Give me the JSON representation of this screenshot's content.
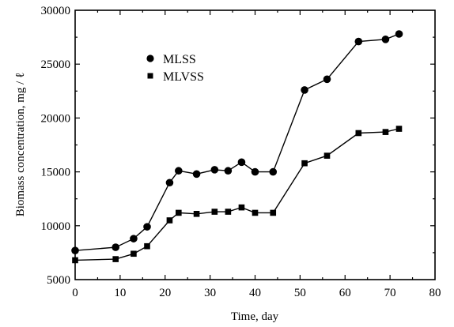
{
  "chart_data": {
    "type": "line",
    "xlabel": "Time, day",
    "ylabel": "Biomass concentration, mg / ℓ",
    "xlim": [
      0,
      80
    ],
    "ylim": [
      5000,
      30000
    ],
    "xticks": [
      0,
      10,
      20,
      30,
      40,
      50,
      60,
      70,
      80
    ],
    "yticks": [
      5000,
      10000,
      15000,
      20000,
      25000,
      30000
    ],
    "x_tick_labels": [
      "0",
      "10",
      "20",
      "30",
      "40",
      "50",
      "60",
      "70",
      "80"
    ],
    "y_tick_labels": [
      "5000",
      "10000",
      "15000",
      "20000",
      "25000",
      "30000"
    ],
    "grid": false,
    "legend_position": "upper-left",
    "series": [
      {
        "name": "MLSS",
        "marker": "circle",
        "color": "#000000",
        "x": [
          0,
          9,
          13,
          16,
          21,
          23,
          27,
          31,
          34,
          37,
          40,
          44,
          51,
          56,
          63,
          69,
          72
        ],
        "y": [
          7700,
          8000,
          8800,
          9900,
          14000,
          15100,
          14800,
          15200,
          15100,
          15900,
          15000,
          15000,
          22600,
          23600,
          27100,
          27300,
          27800
        ]
      },
      {
        "name": "MLVSS",
        "marker": "square",
        "color": "#000000",
        "x": [
          0,
          9,
          13,
          16,
          21,
          23,
          27,
          31,
          34,
          37,
          40,
          44,
          51,
          56,
          63,
          69,
          72
        ],
        "y": [
          6800,
          6900,
          7400,
          8100,
          10500,
          11200,
          11100,
          11300,
          11300,
          11700,
          11200,
          11200,
          15800,
          16500,
          18600,
          18700,
          19000
        ]
      }
    ]
  }
}
